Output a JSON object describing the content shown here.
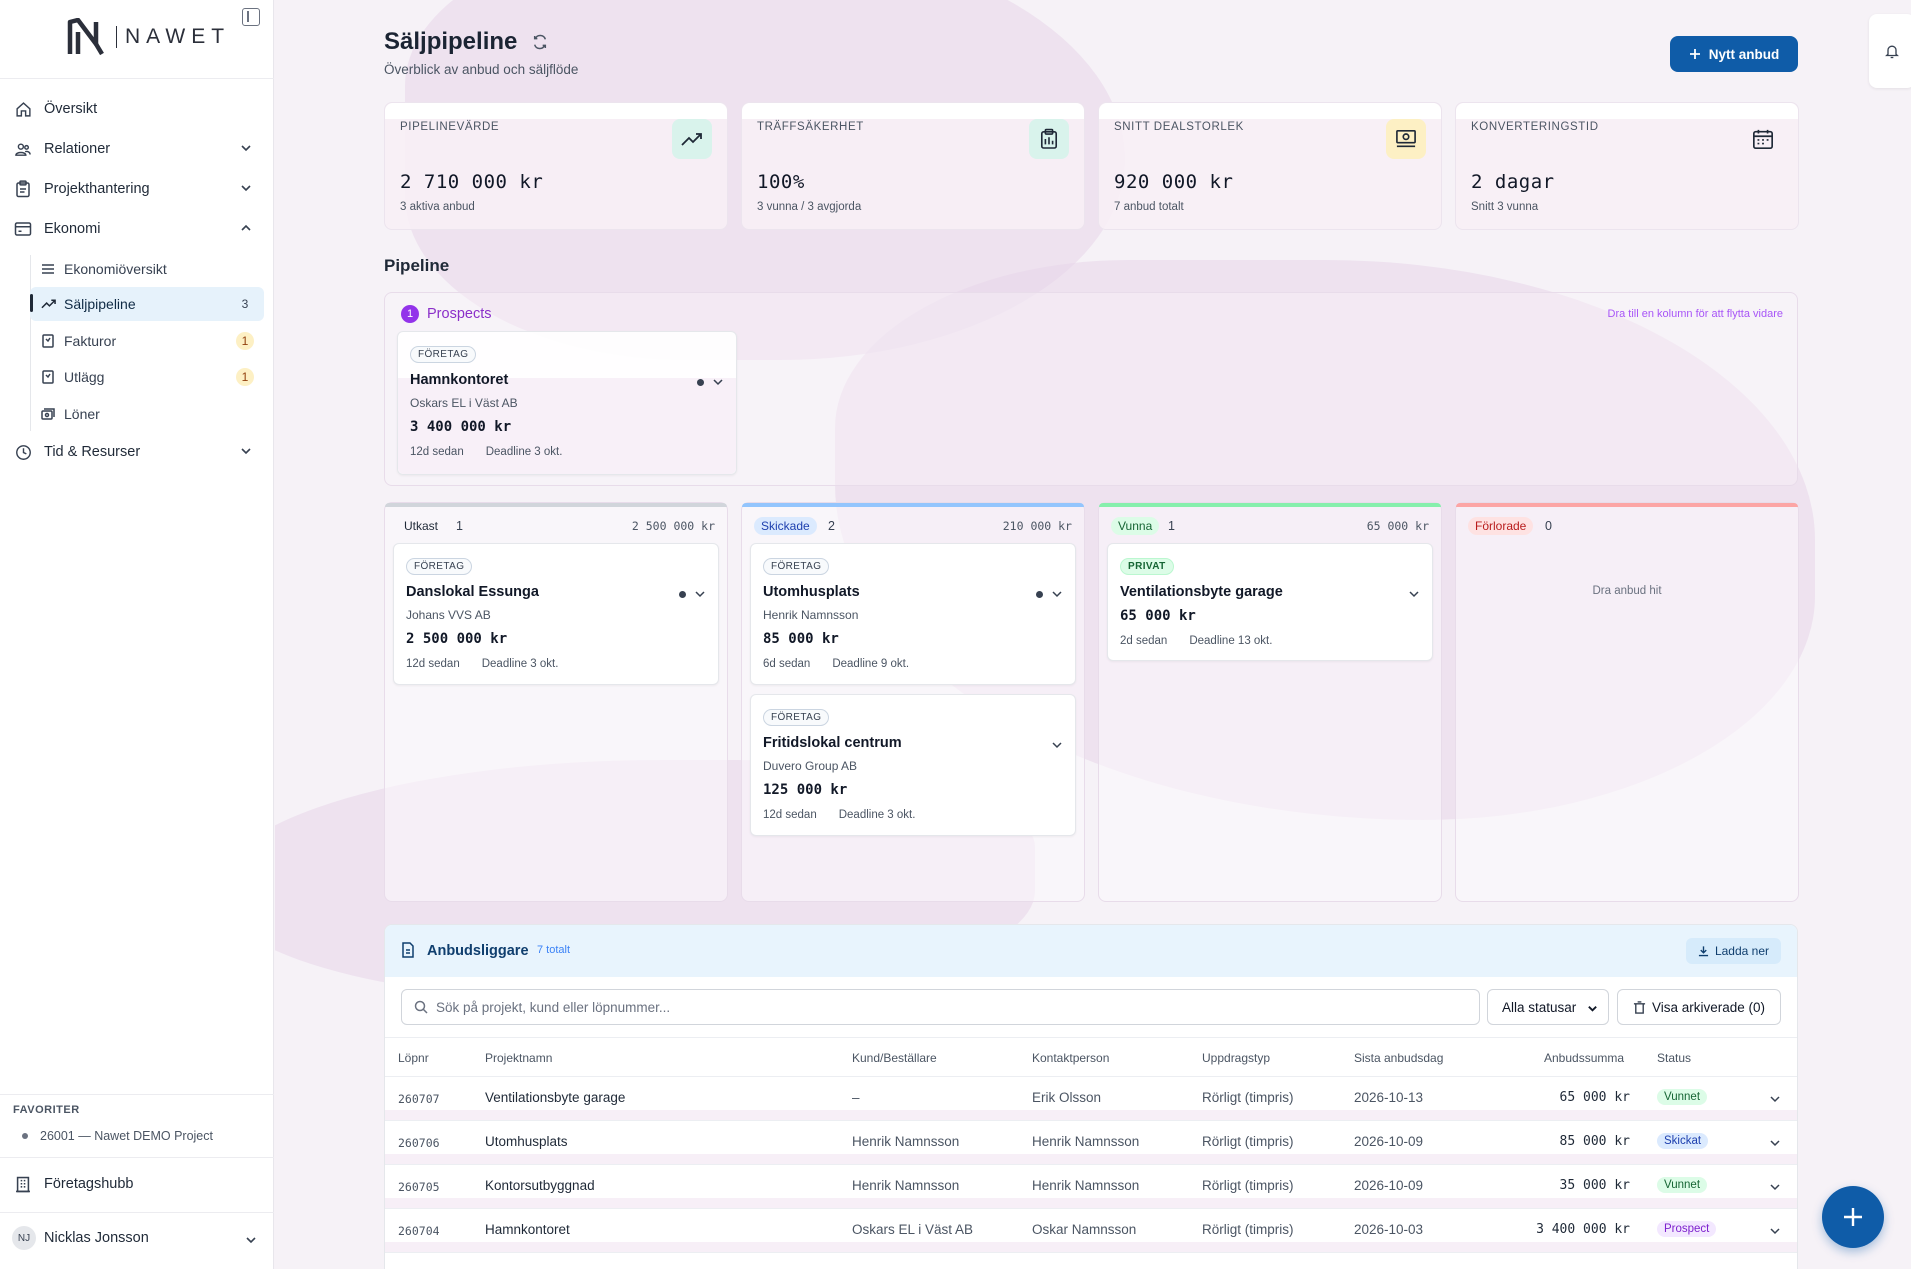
{
  "brand": {
    "name": "NAWET"
  },
  "sidebar": {
    "nav": [
      {
        "label": "Översikt",
        "icon": "home-icon"
      },
      {
        "label": "Relationer",
        "icon": "users-icon"
      },
      {
        "label": "Projekthantering",
        "icon": "clipboard-icon"
      },
      {
        "label": "Ekonomi",
        "icon": "wallet-icon"
      }
    ],
    "ekonomi_items": [
      {
        "label": "Ekonomiöversikt",
        "icon": "list-icon",
        "count": ""
      },
      {
        "label": "Säljpipeline",
        "icon": "trend-icon",
        "count": "3"
      },
      {
        "label": "Fakturor",
        "icon": "receipt-icon",
        "count": "1"
      },
      {
        "label": "Utlägg",
        "icon": "receipt-icon",
        "count": "1"
      },
      {
        "label": "Löner",
        "icon": "money-icon",
        "count": ""
      }
    ],
    "tid": {
      "label": "Tid & Resurser",
      "icon": "clock-icon"
    },
    "favorites_label": "FAVORITER",
    "favorite_item": "26001 — Nawet DEMO Project",
    "company_hub": "Företagshubb",
    "user": {
      "initials": "NJ",
      "name": "Nicklas Jonsson"
    }
  },
  "header": {
    "title": "Säljpipeline",
    "subtitle": "Överblick av anbud och säljflöde",
    "new_button": "Nytt anbud"
  },
  "stats": [
    {
      "label": "PIPELINEVÄRDE",
      "value": "2 710 000 kr",
      "sub": "3 aktiva anbud",
      "icon": "trend-up-icon",
      "icon_bg": "#d9f3ec"
    },
    {
      "label": "TRÄFFSÄKERHET",
      "value": "100%",
      "sub": "3 vunna / 3 avgjorda",
      "icon": "clipboard-icon",
      "icon_bg": "#d9f3ec"
    },
    {
      "label": "SNITT DEALSTORLEK",
      "value": "920 000 kr",
      "sub": "7 anbud totalt",
      "icon": "cash-icon",
      "icon_bg": "#fdf0c4"
    },
    {
      "label": "KONVERTERINGSTID",
      "value": "2 dagar",
      "sub": "Snitt 3 vunna",
      "icon": "calendar-icon",
      "icon_bg": "transparent"
    }
  ],
  "pipeline_title": "Pipeline",
  "prospects": {
    "count": "1",
    "title": "Prospects",
    "hint": "Dra till en kolumn för att flytta vidare",
    "card": {
      "tag": "FÖRETAG",
      "title": "Hamnkontoret",
      "client": "Oskars EL i Väst AB",
      "amount": "3 400 000 kr",
      "age": "12d sedan",
      "deadline": "Deadline 3 okt."
    }
  },
  "columns": [
    {
      "name": "Utkast",
      "count": "1",
      "sum": "2 500 000 kr",
      "name_bg": "transparent",
      "name_color": "#1f2937",
      "cards": [
        {
          "tag": "FÖRETAG",
          "title": "Danslokal Essunga",
          "client": "Johans VVS AB",
          "amount": "2 500 000 kr",
          "age": "12d sedan",
          "deadline": "Deadline 3 okt."
        }
      ]
    },
    {
      "name": "Skickade",
      "count": "2",
      "sum": "210 000 kr",
      "name_bg": "#dbeafe",
      "name_color": "#1e40af",
      "cards": [
        {
          "tag": "FÖRETAG",
          "title": "Utomhusplats",
          "client": "Henrik Namnsson",
          "amount": "85 000 kr",
          "age": "6d sedan",
          "deadline": "Deadline 9 okt."
        },
        {
          "tag": "FÖRETAG",
          "title": "Fritidslokal centrum",
          "client": "Duvero Group AB",
          "amount": "125 000 kr",
          "age": "12d sedan",
          "deadline": "Deadline 3 okt."
        }
      ]
    },
    {
      "name": "Vunna",
      "count": "1",
      "sum": "65 000 kr",
      "name_bg": "#dcfce7",
      "name_color": "#166534",
      "cards": [
        {
          "tag": "PRIVAT",
          "title": "Ventilationsbyte garage",
          "client": "",
          "amount": "65 000 kr",
          "age": "2d sedan",
          "deadline": "Deadline 13 okt."
        }
      ]
    },
    {
      "name": "Förlorade",
      "count": "0",
      "sum": "",
      "name_bg": "#fee2e2",
      "name_color": "#b91c1c",
      "empty": "Dra anbud hit",
      "cards": []
    }
  ],
  "ledger": {
    "title": "Anbudsliggare",
    "count": "7 totalt",
    "download": "Ladda ner",
    "search_placeholder": "Sök på projekt, kund eller löpnummer...",
    "status_filter": "Alla statusar",
    "archive_button": "Visa arkiverade (0)",
    "headers": [
      "Löpnr",
      "Projektnamn",
      "Kund/Beställare",
      "Kontaktperson",
      "Uppdragstyp",
      "Sista anbudsdag",
      "Anbudssumma",
      "Status"
    ],
    "rows": [
      {
        "nr": "260707",
        "project": "Ventilationsbyte garage",
        "client": "–",
        "contact": "Erik Olsson",
        "type": "Rörligt (timpris)",
        "date": "2026-10-13",
        "sum": "65 000 kr",
        "status": "Vunnet",
        "status_bg": "#dcfce7",
        "status_color": "#166534"
      },
      {
        "nr": "260706",
        "project": "Utomhusplats",
        "client": "Henrik Namnsson",
        "contact": "Henrik Namnsson",
        "type": "Rörligt (timpris)",
        "date": "2026-10-09",
        "sum": "85 000 kr",
        "status": "Skickat",
        "status_bg": "#dbeafe",
        "status_color": "#1e40af"
      },
      {
        "nr": "260705",
        "project": "Kontorsutbyggnad",
        "client": "Henrik Namnsson",
        "contact": "Henrik Namnsson",
        "type": "Rörligt (timpris)",
        "date": "2026-10-09",
        "sum": "35 000 kr",
        "status": "Vunnet",
        "status_bg": "#dcfce7",
        "status_color": "#166534"
      },
      {
        "nr": "260704",
        "project": "Hamnkontoret",
        "client": "Oskars EL i Väst AB",
        "contact": "Oskar Namnsson",
        "type": "Rörligt (timpris)",
        "date": "2026-10-03",
        "sum": "3 400 000 kr",
        "status": "Prospect",
        "status_bg": "#f3e8ff",
        "status_color": "#7e22ce"
      }
    ]
  }
}
